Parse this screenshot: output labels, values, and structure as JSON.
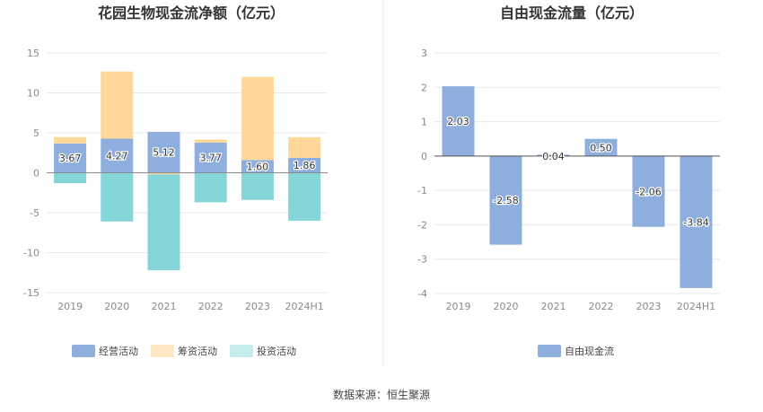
{
  "source_text": "数据来源：恒生聚源",
  "colors": {
    "operating": "#8eaedd",
    "financing": "#ffd899",
    "investing": "#85d6d8",
    "free_cash_flow": "#8eaedd",
    "legend_investing": "#c6ecee",
    "legend_financing": "#ffe7c4"
  },
  "chart_data": [
    {
      "type": "bar",
      "stacked": true,
      "title": "花园生物现金流净额（亿元）",
      "xlabel": "",
      "ylabel": "",
      "categories": [
        "2019",
        "2020",
        "2021",
        "2022",
        "2023",
        "2024H1"
      ],
      "ylim": [
        -15,
        15
      ],
      "yticks": [
        15,
        10,
        5,
        0,
        -5,
        -10,
        -15
      ],
      "grid": true,
      "legend_position": "bottom",
      "series": [
        {
          "name": "经营活动",
          "values": [
            3.67,
            4.27,
            5.12,
            3.77,
            1.6,
            1.86
          ],
          "labels": [
            "3.67",
            "4.27",
            "5.12",
            "3.77",
            "1.60",
            "1.86"
          ]
        },
        {
          "name": "筹资活动",
          "values": [
            0.8,
            8.4,
            -0.2,
            0.4,
            10.4,
            2.6
          ]
        },
        {
          "name": "投资活动",
          "values": [
            -1.3,
            -6.1,
            -12.0,
            -3.7,
            -3.4,
            -6.0
          ]
        }
      ]
    },
    {
      "type": "bar",
      "title": "自由现金流量（亿元）",
      "xlabel": "",
      "ylabel": "",
      "categories": [
        "2019",
        "2020",
        "2021",
        "2022",
        "2023",
        "2024H1"
      ],
      "ylim": [
        -4,
        3
      ],
      "yticks": [
        3,
        2,
        1,
        0,
        -1,
        -2,
        -3,
        -4
      ],
      "grid": true,
      "legend_position": "bottom",
      "series": [
        {
          "name": "自由现金流",
          "values": [
            2.03,
            -2.58,
            0.04,
            0.5,
            -2.06,
            -3.84
          ],
          "labels": [
            "2.03",
            "-2.58",
            "0.04",
            "0.50",
            "-2.06",
            "-3.84"
          ]
        }
      ]
    }
  ]
}
